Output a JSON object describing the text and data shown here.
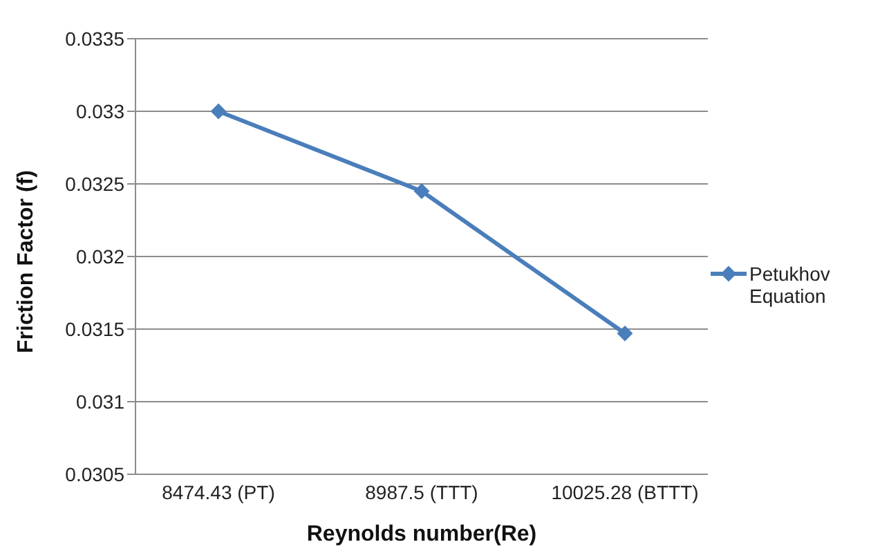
{
  "chart_data": {
    "type": "line",
    "xlabel": "Reynolds number(Re)",
    "ylabel": "Friction Factor (f)",
    "categories": [
      "8474.43 (PT)",
      "8987.5 (TTT)",
      "10025.28 (BTTT)"
    ],
    "series": [
      {
        "name": "Petukhov Equation",
        "color": "#4a7ebb",
        "values": [
          0.033,
          0.03245,
          0.03147
        ]
      }
    ],
    "ylim": [
      0.0305,
      0.0335
    ],
    "yticks": [
      0.0305,
      0.031,
      0.0315,
      0.032,
      0.0325,
      0.033,
      0.0335
    ],
    "grid": "y",
    "legend": "right",
    "marker": "diamond"
  }
}
